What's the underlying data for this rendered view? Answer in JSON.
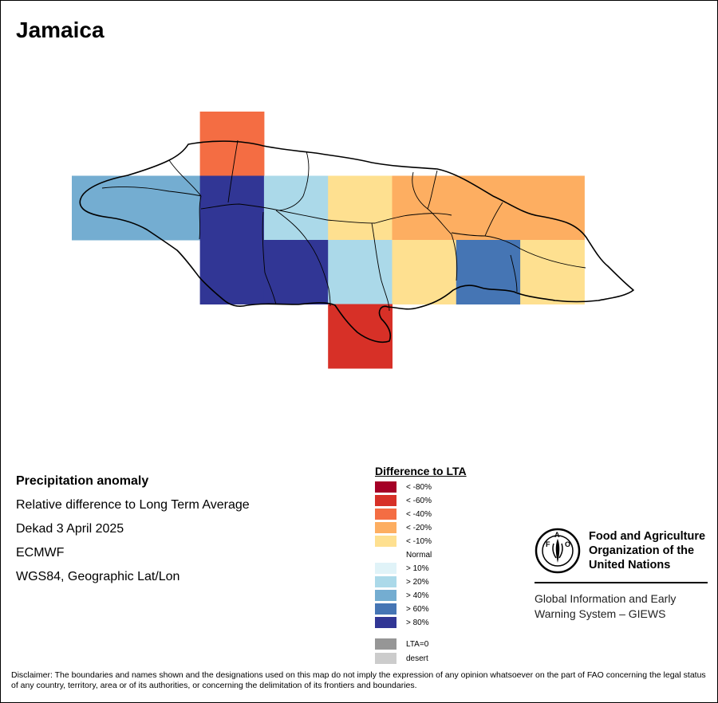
{
  "title": "Jamaica",
  "meta": {
    "heading": "Precipitation anomaly",
    "line1": "Relative difference to Long Term Average",
    "line2": "Dekad 3 April 2025",
    "line3": "ECMWF",
    "line4": "WGS84, Geographic Lat/Lon"
  },
  "legend": {
    "title": "Difference to LTA",
    "items": [
      {
        "label": "< -80%",
        "color": "#a50026"
      },
      {
        "label": "< -60%",
        "color": "#d73027"
      },
      {
        "label": "< -40%",
        "color": "#f46d43"
      },
      {
        "label": "< -20%",
        "color": "#fdae61"
      },
      {
        "label": "< -10%",
        "color": "#fee090"
      },
      {
        "label": "Normal",
        "color": "#ffffff"
      },
      {
        "label": "> 10%",
        "color": "#e0f3f8"
      },
      {
        "label": "> 20%",
        "color": "#abd9e9"
      },
      {
        "label": "> 40%",
        "color": "#74add1"
      },
      {
        "label": "> 60%",
        "color": "#4575b4"
      },
      {
        "label": "> 80%",
        "color": "#313695"
      },
      {
        "label": "LTA=0",
        "color": "#969696"
      },
      {
        "label": "desert",
        "color": "#cccccc"
      }
    ]
  },
  "grid_cells": [
    {
      "row": 0,
      "col": 2,
      "color": "#f46d43"
    },
    {
      "row": 1,
      "col": 0,
      "color": "#74add1"
    },
    {
      "row": 1,
      "col": 1,
      "color": "#74add1"
    },
    {
      "row": 1,
      "col": 2,
      "color": "#313695"
    },
    {
      "row": 1,
      "col": 3,
      "color": "#abd9e9"
    },
    {
      "row": 1,
      "col": 4,
      "color": "#fee090"
    },
    {
      "row": 1,
      "col": 5,
      "color": "#fdae61"
    },
    {
      "row": 1,
      "col": 6,
      "color": "#fdae61"
    },
    {
      "row": 1,
      "col": 7,
      "color": "#fdae61"
    },
    {
      "row": 2,
      "col": 2,
      "color": "#313695"
    },
    {
      "row": 2,
      "col": 3,
      "color": "#313695"
    },
    {
      "row": 2,
      "col": 4,
      "color": "#abd9e9"
    },
    {
      "row": 2,
      "col": 5,
      "color": "#fee090"
    },
    {
      "row": 2,
      "col": 6,
      "color": "#4575b4"
    },
    {
      "row": 2,
      "col": 7,
      "color": "#fee090"
    },
    {
      "row": 3,
      "col": 4,
      "color": "#d73027"
    }
  ],
  "fao": {
    "line1": "Food and Agriculture",
    "line2": "Organization of the",
    "line3": "United Nations",
    "giews1": "Global Information and Early",
    "giews2": "Warning System – GIEWS",
    "logo_text": "FAO",
    "logo_motto": "FIAT PANIS"
  },
  "disclaimer": "Disclaimer: The boundaries and names shown and the designations used on this map do not imply the expression of any opinion whatsoever on the part of FAO concerning the legal status of any country, territory, area or of its authorities, or concerning the delimitation of its frontiers and boundaries."
}
